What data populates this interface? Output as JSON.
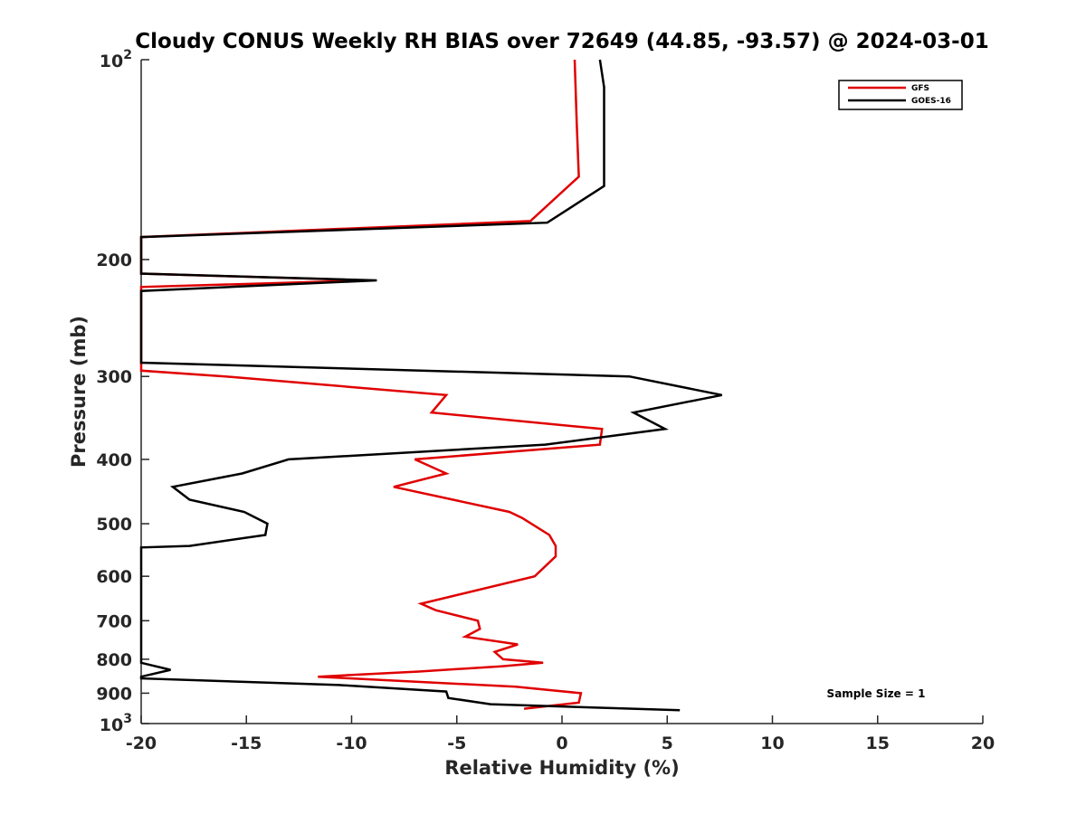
{
  "chart_data": {
    "type": "line",
    "title": "Cloudy CONUS Weekly RH BIAS over 72649 (44.85, -93.57) @ 2024-03-01",
    "xlabel": "Relative Humidity (%)",
    "ylabel": "Pressure (mb)",
    "xlim": [
      -20,
      20
    ],
    "ylim": [
      100,
      1000
    ],
    "y_scale": "log",
    "y_reversed": true,
    "grid": false,
    "legend_position": "top-right",
    "x_ticks": [
      "-20",
      "-15",
      "-10",
      "-5",
      "0",
      "5",
      "10",
      "15",
      "20"
    ],
    "x_tick_values": [
      -20,
      -15,
      -10,
      -5,
      0,
      5,
      10,
      15,
      20
    ],
    "y_ticks": [
      {
        "value": 100,
        "base": "10",
        "exp": "2"
      },
      {
        "value": 200,
        "label": "200"
      },
      {
        "value": 300,
        "label": "300"
      },
      {
        "value": 400,
        "label": "400"
      },
      {
        "value": 500,
        "label": "500"
      },
      {
        "value": 600,
        "label": "600"
      },
      {
        "value": 700,
        "label": "700"
      },
      {
        "value": 800,
        "label": "800"
      },
      {
        "value": 900,
        "label": "900"
      },
      {
        "value": 1000,
        "base": "10",
        "exp": "3"
      }
    ],
    "series": [
      {
        "name": "GFS",
        "color": "#e00000",
        "points": [
          [
            0.6,
            100
          ],
          [
            0.7,
            125
          ],
          [
            0.8,
            150
          ],
          [
            -1.5,
            175
          ],
          [
            -20,
            185
          ],
          [
            -20,
            210
          ],
          [
            -9.2,
            215
          ],
          [
            -20,
            220
          ],
          [
            -20,
            294
          ],
          [
            -16,
            300
          ],
          [
            -5.5,
            320
          ],
          [
            -6.2,
            340
          ],
          [
            1.9,
            360
          ],
          [
            1.8,
            380
          ],
          [
            -7,
            400
          ],
          [
            -5.5,
            420
          ],
          [
            -8,
            440
          ],
          [
            -2.5,
            480
          ],
          [
            -1.9,
            490
          ],
          [
            -0.6,
            520
          ],
          [
            -0.3,
            540
          ],
          [
            -0.3,
            560
          ],
          [
            -1.3,
            600
          ],
          [
            -6.7,
            660
          ],
          [
            -6,
            675
          ],
          [
            -4,
            700
          ],
          [
            -3.9,
            720
          ],
          [
            -4.6,
            740
          ],
          [
            -2.1,
            760
          ],
          [
            -3.2,
            780
          ],
          [
            -2.8,
            800
          ],
          [
            -0.9,
            810
          ],
          [
            -2.9,
            820
          ],
          [
            -6.8,
            835
          ],
          [
            -11.6,
            850
          ],
          [
            -2.2,
            880
          ],
          [
            0.9,
            900
          ],
          [
            0.8,
            930
          ],
          [
            -1.8,
            950
          ]
        ]
      },
      {
        "name": "GOES-16",
        "color": "#000000",
        "points": [
          [
            1.8,
            100
          ],
          [
            2.0,
            110
          ],
          [
            2.0,
            130
          ],
          [
            2.0,
            155
          ],
          [
            -0.7,
            176
          ],
          [
            -20,
            185
          ],
          [
            -20,
            210
          ],
          [
            -8.8,
            215
          ],
          [
            -20,
            223
          ],
          [
            -20,
            286
          ],
          [
            3.2,
            300
          ],
          [
            7.6,
            320
          ],
          [
            3.4,
            340
          ],
          [
            4.9,
            360
          ],
          [
            -0.8,
            380
          ],
          [
            -13,
            400
          ],
          [
            -15.2,
            420
          ],
          [
            -18.5,
            440
          ],
          [
            -17.7,
            460
          ],
          [
            -15.1,
            480
          ],
          [
            -14,
            500
          ],
          [
            -14.1,
            520
          ],
          [
            -17.7,
            540
          ],
          [
            -20,
            543
          ],
          [
            -20,
            810
          ],
          [
            -18.6,
            830
          ],
          [
            -20,
            850
          ],
          [
            -20,
            855
          ],
          [
            -10.6,
            875
          ],
          [
            -5.5,
            895
          ],
          [
            -5.4,
            915
          ],
          [
            -3.4,
            935
          ],
          [
            5.6,
            955
          ]
        ]
      }
    ],
    "annotations": [
      "Sample Size = 1"
    ]
  }
}
